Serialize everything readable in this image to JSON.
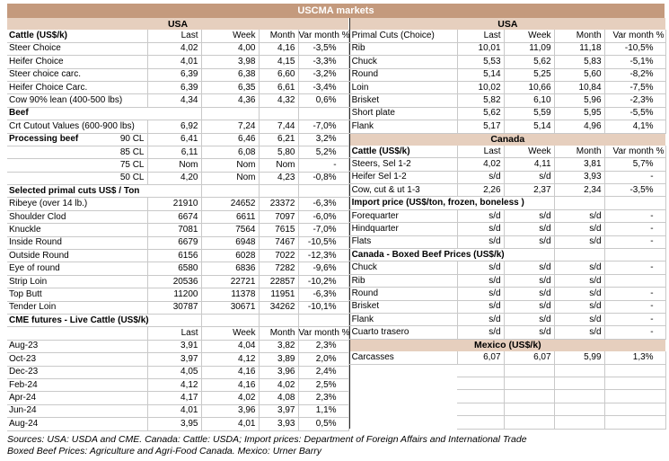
{
  "title": "USCMA markets",
  "colors": {
    "title_bg": "#c49a7d",
    "band_bg": "#e6cfbe",
    "grid": "#c9c9c9",
    "title_text": "#ffffff"
  },
  "left": {
    "rows": [
      {
        "t": "band",
        "label": "USA"
      },
      {
        "t": "header",
        "label": "Cattle (US$/k)",
        "label_bold": true,
        "cols": [
          "Last",
          "Week",
          "Month",
          "Var month %"
        ]
      },
      {
        "t": "data",
        "label": "Steer Choice",
        "v": [
          "4,02",
          "4,00",
          "4,16",
          "-3,5%"
        ]
      },
      {
        "t": "data",
        "label": "Heifer Choice",
        "v": [
          "4,01",
          "3,98",
          "4,15",
          "-3,3%"
        ]
      },
      {
        "t": "data",
        "label": "Steer choice carc.",
        "v": [
          "6,39",
          "6,38",
          "6,60",
          "-3,2%"
        ]
      },
      {
        "t": "data",
        "label": "Heifer Choice Carc.",
        "v": [
          "6,39",
          "6,35",
          "6,61",
          "-3,4%"
        ]
      },
      {
        "t": "data",
        "label": "Cow 90% lean (400-500 lbs)",
        "v": [
          "4,34",
          "4,36",
          "4,32",
          "0,6%"
        ]
      },
      {
        "t": "section",
        "label": "Beef"
      },
      {
        "t": "data",
        "label": "Crt Cutout Values (600-900 lbs)",
        "v": [
          "6,92",
          "7,24",
          "7,44",
          "-7,0%"
        ]
      },
      {
        "t": "data",
        "label": "Processing beef",
        "label_bold": true,
        "label2": "90 CL",
        "v": [
          "6,41",
          "6,46",
          "6,21",
          "3,2%"
        ]
      },
      {
        "t": "data",
        "label": "",
        "label2": "85 CL",
        "v": [
          "6,11",
          "6,08",
          "5,80",
          "5,2%"
        ]
      },
      {
        "t": "data",
        "label": "",
        "label2": "75 CL",
        "v": [
          "Nom",
          "Nom",
          "Nom",
          "-"
        ]
      },
      {
        "t": "data",
        "label": "",
        "label2": "50 CL",
        "v": [
          "4,20",
          "Nom",
          "4,23",
          "-0,8%"
        ]
      },
      {
        "t": "section",
        "label": "Selected primal cuts US$ / Ton"
      },
      {
        "t": "data",
        "label": "Ribeye (over 14 lb.)",
        "v": [
          "21910",
          "24652",
          "23372",
          "-6,3%"
        ]
      },
      {
        "t": "data",
        "label": "Shoulder Clod",
        "v": [
          "6674",
          "6611",
          "7097",
          "-6,0%"
        ]
      },
      {
        "t": "data",
        "label": "Knuckle",
        "v": [
          "7081",
          "7564",
          "7615",
          "-7,0%"
        ]
      },
      {
        "t": "data",
        "label": "Inside Round",
        "v": [
          "6679",
          "6948",
          "7467",
          "-10,5%"
        ]
      },
      {
        "t": "data",
        "label": "Outside Round",
        "v": [
          "6156",
          "6028",
          "7022",
          "-12,3%"
        ]
      },
      {
        "t": "data",
        "label": "Eye of round",
        "v": [
          "6580",
          "6836",
          "7282",
          "-9,6%"
        ]
      },
      {
        "t": "data",
        "label": "Strip Loin",
        "v": [
          "20536",
          "22721",
          "22857",
          "-10,2%"
        ]
      },
      {
        "t": "data",
        "label": "Top Butt",
        "v": [
          "11200",
          "11378",
          "11951",
          "-6,3%"
        ]
      },
      {
        "t": "data",
        "label": "Tender Loin",
        "v": [
          "30787",
          "30671",
          "34262",
          "-10,1%"
        ]
      },
      {
        "t": "section",
        "label": "CME futures - Live Cattle (US$/k)"
      },
      {
        "t": "header",
        "label": "",
        "label_bold": false,
        "cols": [
          "Last",
          "Week",
          "Month",
          "Var month %"
        ]
      },
      {
        "t": "data",
        "label": "Aug-23",
        "v": [
          "3,91",
          "4,04",
          "3,82",
          "2,3%"
        ]
      },
      {
        "t": "data",
        "label": "Oct-23",
        "v": [
          "3,97",
          "4,12",
          "3,89",
          "2,0%"
        ]
      },
      {
        "t": "data",
        "label": "Dec-23",
        "v": [
          "4,05",
          "4,16",
          "3,96",
          "2,4%"
        ]
      },
      {
        "t": "data",
        "label": "Feb-24",
        "v": [
          "4,12",
          "4,16",
          "4,02",
          "2,5%"
        ]
      },
      {
        "t": "data",
        "label": "Apr-24",
        "v": [
          "4,17",
          "4,02",
          "4,08",
          "2,3%"
        ]
      },
      {
        "t": "data",
        "label": "Jun-24",
        "v": [
          "4,01",
          "3,96",
          "3,97",
          "1,1%"
        ]
      },
      {
        "t": "data",
        "label": "Aug-24",
        "v": [
          "3,95",
          "4,01",
          "3,93",
          "0,5%"
        ]
      }
    ]
  },
  "right": {
    "rows": [
      {
        "t": "band",
        "label": "USA"
      },
      {
        "t": "header",
        "label": "Primal Cuts (Choice)",
        "label_bold": false,
        "cols": [
          "Last",
          "Week",
          "Month",
          "Var month %"
        ]
      },
      {
        "t": "data",
        "label": "Rib",
        "v": [
          "10,01",
          "11,09",
          "11,18",
          "-10,5%"
        ]
      },
      {
        "t": "data",
        "label": "Chuck",
        "v": [
          "5,53",
          "5,62",
          "5,83",
          "-5,1%"
        ]
      },
      {
        "t": "data",
        "label": "Round",
        "v": [
          "5,14",
          "5,25",
          "5,60",
          "-8,2%"
        ]
      },
      {
        "t": "data",
        "label": "Loin",
        "v": [
          "10,02",
          "10,66",
          "10,84",
          "-7,5%"
        ]
      },
      {
        "t": "data",
        "label": "Brisket",
        "v": [
          "5,82",
          "6,10",
          "5,96",
          "-2,3%"
        ]
      },
      {
        "t": "data",
        "label": "Short plate",
        "v": [
          "5,62",
          "5,59",
          "5,95",
          "-5,5%"
        ]
      },
      {
        "t": "data",
        "label": "Flank",
        "v": [
          "5,17",
          "5,14",
          "4,96",
          "4,1%"
        ]
      },
      {
        "t": "band",
        "label": "Canada"
      },
      {
        "t": "header",
        "label": "Cattle (US$/k)",
        "label_bold": true,
        "cols": [
          "Last",
          "Week",
          "Month",
          "Var month %"
        ]
      },
      {
        "t": "data",
        "label": "Steers, Sel 1-2",
        "v": [
          "4,02",
          "4,11",
          "3,81",
          "5,7%"
        ]
      },
      {
        "t": "data",
        "label": "Heifer Sel 1-2",
        "v": [
          "s/d",
          "s/d",
          "3,93",
          "-"
        ]
      },
      {
        "t": "data",
        "label": "Cow, cut & ut 1-3",
        "v": [
          "2,26",
          "2,37",
          "2,34",
          "-3,5%"
        ]
      },
      {
        "t": "section",
        "label": "Import price (US$/ton, frozen, boneless )"
      },
      {
        "t": "data",
        "label": "Forequarter",
        "v": [
          "s/d",
          "s/d",
          "s/d",
          "-"
        ]
      },
      {
        "t": "data",
        "label": "Hindquarter",
        "v": [
          "s/d",
          "s/d",
          "s/d",
          "-"
        ]
      },
      {
        "t": "data",
        "label": "Flats",
        "v": [
          "s/d",
          "s/d",
          "s/d",
          "-"
        ]
      },
      {
        "t": "section",
        "label": "Canada - Boxed Beef Prices (US$/k)"
      },
      {
        "t": "data",
        "label": "Chuck",
        "v": [
          "s/d",
          "s/d",
          "s/d",
          "-"
        ]
      },
      {
        "t": "data",
        "label": "Rib",
        "v": [
          "s/d",
          "s/d",
          "s/d",
          ""
        ]
      },
      {
        "t": "data",
        "label": "Round",
        "v": [
          "s/d",
          "s/d",
          "s/d",
          "-"
        ]
      },
      {
        "t": "data",
        "label": "Brisket",
        "v": [
          "s/d",
          "s/d",
          "s/d",
          "-"
        ]
      },
      {
        "t": "data",
        "label": "Flank",
        "v": [
          "s/d",
          "s/d",
          "s/d",
          "-"
        ]
      },
      {
        "t": "data",
        "label": "Cuarto trasero",
        "v": [
          "s/d",
          "s/d",
          "s/d",
          "-"
        ]
      },
      {
        "t": "band",
        "label": "Mexico (US$/k)"
      },
      {
        "t": "data",
        "label": "Carcasses",
        "v": [
          "6,07",
          "6,07",
          "5,99",
          "1,3%"
        ]
      },
      {
        "t": "empty"
      },
      {
        "t": "empty"
      },
      {
        "t": "empty"
      },
      {
        "t": "empty"
      },
      {
        "t": "empty"
      }
    ]
  },
  "sources": {
    "line1": "Sources: USA: USDA and CME. Canada: Cattle: USDA; Import prices: Department of Foreign Affairs and International Trade",
    "line2": "Boxed Beef Prices: Agriculture and Agri-Food Canada. Mexico: Urner Barry"
  }
}
